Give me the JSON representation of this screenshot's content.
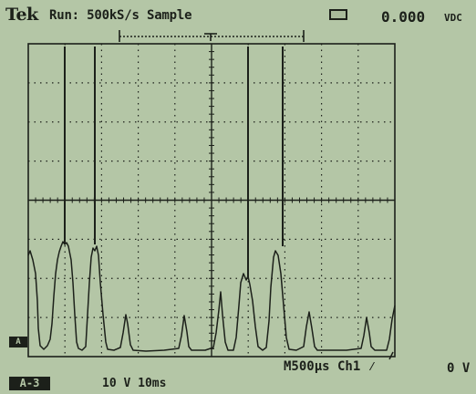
{
  "header": {
    "brand": "Tek",
    "status": "Run: 500kS/s Sample",
    "meter_icon": "multimeter-icon",
    "meter_value": "0.000",
    "meter_unit": "VDC"
  },
  "channel_marker": "A",
  "footer": {
    "timebase": "M500µs Ch1 ⁄",
    "trigger_level": "0 V",
    "menu_tag": "A-3",
    "scales": "10 V  10ms"
  },
  "colors": {
    "screen": "#b4c6a6",
    "ink": "#1c201a"
  }
}
